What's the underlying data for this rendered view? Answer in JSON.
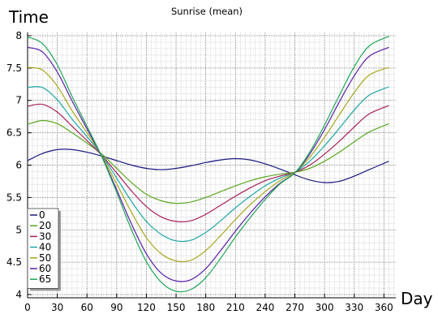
{
  "chart_data": {
    "type": "line",
    "title": "Sunrise (mean)",
    "xlabel": "Day",
    "ylabel": "Time",
    "xlim": [
      0,
      372
    ],
    "ylim": [
      3.95,
      8.05
    ],
    "xticks": [
      0,
      30,
      60,
      90,
      120,
      150,
      180,
      210,
      240,
      270,
      300,
      330,
      360
    ],
    "yticks": [
      4,
      4.5,
      5,
      5.5,
      6,
      6.5,
      7,
      7.5,
      8
    ],
    "ytick_labels": [
      "4",
      "4.5",
      "5",
      "5.5",
      "6",
      "6.5",
      "7",
      "7.5",
      "8"
    ],
    "grid": true,
    "legend_position": "bottom-left",
    "x": [
      0,
      15,
      30,
      45,
      60,
      75,
      90,
      105,
      120,
      135,
      150,
      165,
      180,
      195,
      210,
      225,
      240,
      255,
      270,
      285,
      300,
      315,
      330,
      345,
      365
    ],
    "series": [
      {
        "name": "0",
        "color": "#1a1a80",
        "values": [
          6.07,
          6.18,
          6.24,
          6.24,
          6.2,
          6.14,
          6.07,
          6.0,
          5.95,
          5.93,
          5.95,
          5.99,
          6.04,
          6.08,
          6.1,
          6.08,
          6.02,
          5.94,
          5.85,
          5.77,
          5.73,
          5.75,
          5.83,
          5.93,
          6.06
        ]
      },
      {
        "name": "20",
        "color": "#58a71f",
        "values": [
          6.63,
          6.69,
          6.64,
          6.5,
          6.34,
          6.17,
          5.95,
          5.73,
          5.55,
          5.45,
          5.41,
          5.43,
          5.5,
          5.59,
          5.68,
          5.76,
          5.82,
          5.86,
          5.89,
          5.95,
          6.06,
          6.2,
          6.36,
          6.51,
          6.64
        ]
      },
      {
        "name": "30",
        "color": "#a71f58",
        "values": [
          6.91,
          6.94,
          6.82,
          6.6,
          6.38,
          6.15,
          5.88,
          5.6,
          5.36,
          5.2,
          5.13,
          5.14,
          5.24,
          5.38,
          5.52,
          5.65,
          5.76,
          5.83,
          5.89,
          6.0,
          6.17,
          6.37,
          6.59,
          6.79,
          6.92
        ]
      },
      {
        "name": "40",
        "color": "#1fa7a7",
        "values": [
          7.2,
          7.2,
          7.01,
          6.71,
          6.44,
          6.15,
          5.8,
          5.44,
          5.13,
          4.93,
          4.83,
          4.84,
          4.96,
          5.14,
          5.34,
          5.52,
          5.68,
          5.8,
          5.89,
          6.06,
          6.3,
          6.57,
          6.85,
          7.08,
          7.21
        ]
      },
      {
        "name": "50",
        "color": "#a7a71f",
        "values": [
          7.51,
          7.47,
          7.22,
          6.84,
          6.5,
          6.14,
          5.71,
          5.27,
          4.88,
          4.63,
          4.52,
          4.53,
          4.68,
          4.91,
          5.16,
          5.39,
          5.59,
          5.76,
          5.89,
          6.12,
          6.43,
          6.78,
          7.12,
          7.39,
          7.51
        ]
      },
      {
        "name": "60",
        "color": "#581fa7",
        "values": [
          7.82,
          7.75,
          7.44,
          6.99,
          6.56,
          6.13,
          5.62,
          5.09,
          4.63,
          4.33,
          4.21,
          4.23,
          4.4,
          4.68,
          4.98,
          5.26,
          5.51,
          5.72,
          5.88,
          6.17,
          6.55,
          6.98,
          7.38,
          7.68,
          7.82
        ]
      },
      {
        "name": "65",
        "color": "#1fa758",
        "values": [
          7.98,
          7.88,
          7.55,
          7.06,
          6.6,
          6.13,
          5.58,
          5.0,
          4.51,
          4.19,
          4.05,
          4.08,
          4.26,
          4.56,
          4.89,
          5.19,
          5.47,
          5.71,
          5.88,
          6.2,
          6.62,
          7.08,
          7.52,
          7.84,
          7.99
        ]
      }
    ]
  }
}
